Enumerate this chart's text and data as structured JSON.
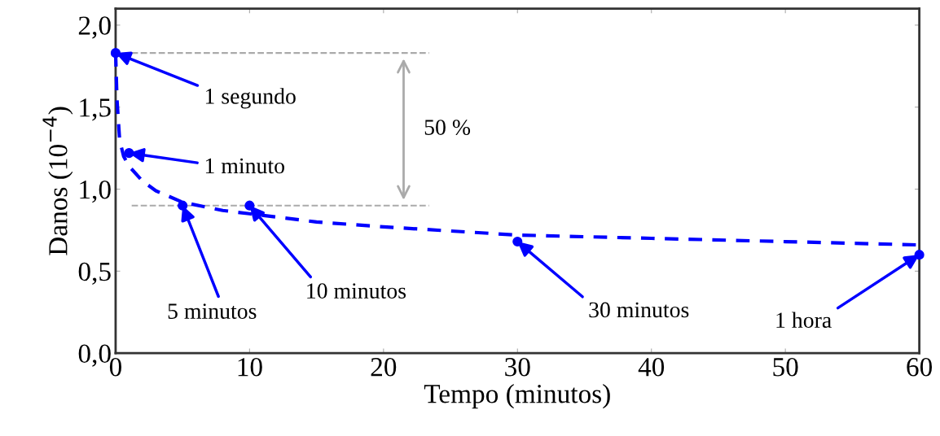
{
  "chart_data": {
    "type": "scatter",
    "xlabel": "Tempo (minutos)",
    "ylabel": "Danos (10$^{−4}$)",
    "xlim": [
      0,
      60
    ],
    "xticks": [
      0,
      10,
      20,
      30,
      40,
      50,
      60
    ],
    "ylim": [
      0,
      2.1
    ],
    "yticks": [
      {
        "value": 0,
        "label": "0,0"
      },
      {
        "value": 0.5,
        "label": "0,5"
      },
      {
        "value": 1.0,
        "label": "1,0"
      },
      {
        "value": 1.5,
        "label": "1,5"
      },
      {
        "value": 2.0,
        "label": "2,0"
      }
    ],
    "grid": false,
    "series": [
      {
        "type": "scatter",
        "color": "#0000ff",
        "marker": "circle",
        "x": [
          0,
          1,
          5,
          10,
          30,
          60
        ],
        "values": [
          1.83,
          1.22,
          0.9,
          0.9,
          0.68,
          0.6
        ]
      },
      {
        "type": "line",
        "color": "#0000ff",
        "line_style": "dashed",
        "marker": "none",
        "x": [
          0,
          0.1,
          0.3,
          0.6,
          1,
          2,
          3,
          5,
          8,
          10,
          15,
          20,
          28,
          30,
          40,
          50,
          60
        ],
        "values": [
          1.83,
          1.55,
          1.3,
          1.2,
          1.14,
          1.05,
          0.99,
          0.92,
          0.87,
          0.85,
          0.8,
          0.77,
          0.73,
          0.72,
          0.7,
          0.68,
          0.66
        ]
      }
    ],
    "ref_lines": [
      {
        "axis": "y",
        "value": 1.83,
        "color": "#aaaaaa",
        "line_style": "dashed"
      },
      {
        "axis": "y",
        "value": 0.9,
        "color": "#aaaaaa",
        "line_style": "dashed"
      }
    ],
    "annotations": [
      {
        "text": "1 segundo",
        "x": 0,
        "y": 1.83
      },
      {
        "text": "1 minuto",
        "x": 1,
        "y": 1.22
      },
      {
        "text": "5 minutos",
        "x": 5,
        "y": 0.9
      },
      {
        "text": "10 minutos",
        "x": 10,
        "y": 0.9
      },
      {
        "text": "30 minutos",
        "x": 30,
        "y": 0.68
      },
      {
        "text": "1 hora",
        "x": 60,
        "y": 0.6
      },
      "50 %"
    ]
  }
}
